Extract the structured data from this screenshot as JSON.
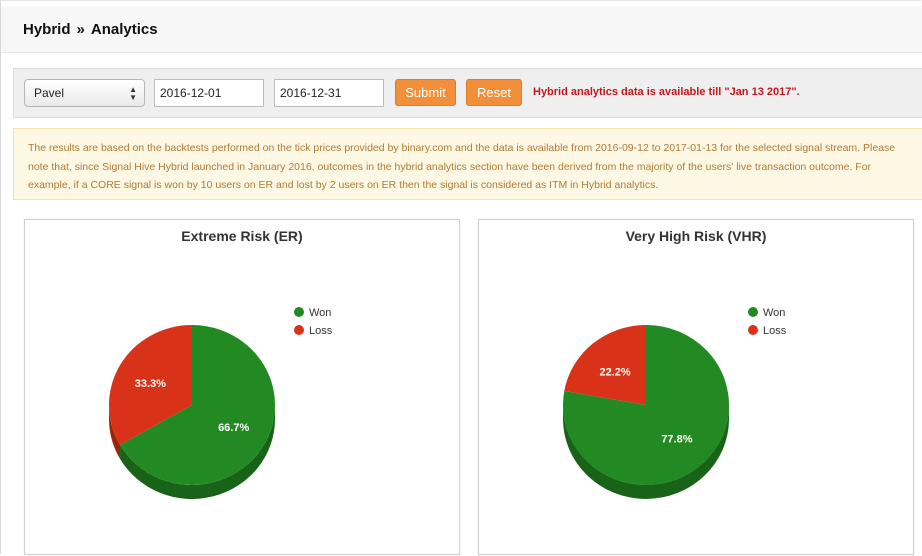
{
  "breadcrumb": {
    "root": "Hybrid",
    "separator": "»",
    "current": "Analytics"
  },
  "filters": {
    "user_select": "Pavel",
    "start_date": "2016-12-01",
    "end_date": "2016-12-31",
    "submit_label": "Submit",
    "reset_label": "Reset",
    "availability_notice": "Hybrid analytics data is available till \"Jan 13 2017\"."
  },
  "info_text": "The results are based on the backtests performed on the tick prices provided by binary.com and the data is available from 2016-09-12 to 2017-01-13 for the selected signal stream. Please note that, since Signal Hive Hybrid launched in January 2016, outcomes in the hybrid analytics section have been derived from the majority of the users' live transaction outcome. For example, if a CORE signal is won by 10 users on ER and lost by 2 users on ER then the signal is considered as ITM in Hybrid analytics.",
  "colors": {
    "won": "#238a23",
    "won_side": "#186318",
    "loss": "#d83218",
    "loss_side": "#9e2410",
    "accent": "#f28f3b",
    "notice": "#c4161c"
  },
  "chart_data": [
    {
      "type": "pie",
      "title": "Extreme Risk (ER)",
      "categories": [
        "Won",
        "Loss"
      ],
      "values": [
        66.7,
        33.3
      ],
      "labels": [
        "66.7%",
        "33.3%"
      ],
      "legend": "right"
    },
    {
      "type": "pie",
      "title": "Very High Risk (VHR)",
      "categories": [
        "Won",
        "Loss"
      ],
      "values": [
        77.8,
        22.2
      ],
      "labels": [
        "77.8%",
        "22.2%"
      ],
      "legend": "right"
    }
  ]
}
